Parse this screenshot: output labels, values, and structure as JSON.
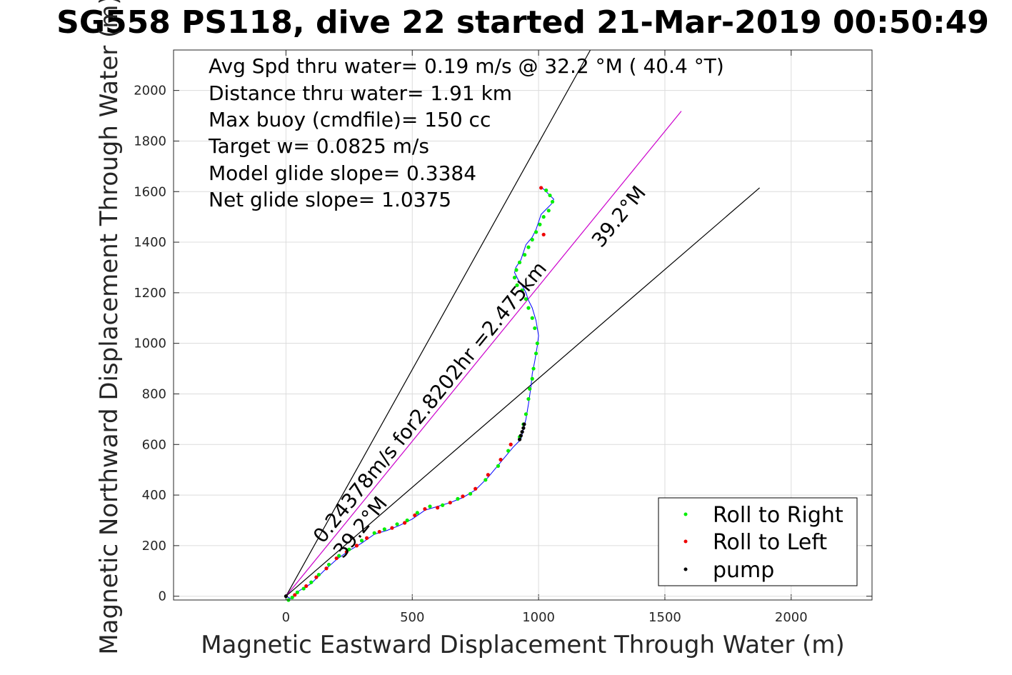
{
  "chart_data": {
    "type": "scatter",
    "title": "SG558 PS118, dive 22 started 21-Mar-2019 00:50:49",
    "xlabel": "Magnetic Eastward Displacement Through Water (m)",
    "ylabel": "Magnetic Northward Displacement Through Water (m)",
    "xlim": [
      -445,
      2320
    ],
    "ylim": [
      -15,
      2160
    ],
    "xticks": [
      0,
      500,
      1000,
      1500,
      2000
    ],
    "yticks": [
      0,
      200,
      400,
      600,
      800,
      1000,
      1200,
      1400,
      1600,
      1800,
      2000
    ],
    "grid": true,
    "legend_position": "bottom-right",
    "annotations": [
      "Avg Spd thru water=  0.19 m/s @  32.2 °M ( 40.4 °T)",
      "Distance thru water=  1.91 km",
      "Max buoy (cmdfile)= 150 cc",
      "Target w= 0.0825 m/s",
      "Model glide slope= 0.3384",
      "Net glide slope= 1.0375"
    ],
    "rotated_labels": {
      "speed": "0.24378m/s for2.8202hr =2.475km",
      "heading_upper": "39.2°M",
      "heading_lower": "39.2°M"
    },
    "reference_lines": [
      {
        "name": "upper",
        "x": [
          0,
          1205
        ],
        "y": [
          0,
          2160
        ],
        "color": "#000000"
      },
      {
        "name": "target",
        "x": [
          0,
          1565
        ],
        "y": [
          0,
          1918
        ],
        "color": "#cc00cc"
      },
      {
        "name": "lower",
        "x": [
          0,
          1875
        ],
        "y": [
          0,
          1615
        ],
        "color": "#000000"
      }
    ],
    "track": {
      "name": "track",
      "color": "#0000ff",
      "x": [
        0,
        20,
        50,
        100,
        150,
        200,
        250,
        300,
        350,
        400,
        450,
        500,
        550,
        600,
        650,
        700,
        750,
        800,
        850,
        900,
        930,
        940,
        950,
        960,
        970,
        975,
        985,
        995,
        1000,
        990,
        975,
        960,
        950,
        940,
        920,
        905,
        910,
        930,
        940,
        950,
        975,
        990,
        1000,
        1010,
        1030,
        1050,
        1060,
        1040,
        1020,
        1005
      ],
      "y": [
        0,
        -10,
        20,
        50,
        100,
        145,
        180,
        210,
        245,
        260,
        280,
        305,
        340,
        355,
        370,
        390,
        420,
        470,
        530,
        590,
        620,
        660,
        700,
        760,
        830,
        880,
        930,
        990,
        1030,
        1090,
        1140,
        1170,
        1200,
        1220,
        1250,
        1280,
        1300,
        1330,
        1360,
        1390,
        1420,
        1450,
        1480,
        1510,
        1530,
        1550,
        1570,
        1590,
        1610,
        1620
      ]
    },
    "series": [
      {
        "name": "Roll to Right",
        "color": "#00ee00",
        "marker": "dot",
        "x": [
          10,
          25,
          45,
          70,
          100,
          130,
          170,
          210,
          250,
          300,
          350,
          390,
          440,
          480,
          520,
          570,
          620,
          680,
          730,
          790,
          840,
          880,
          925,
          940,
          950,
          960,
          965,
          975,
          980,
          990,
          995,
          985,
          975,
          960,
          950,
          935,
          915,
          905,
          912,
          925,
          945,
          960,
          975,
          990,
          1005,
          1020,
          1040,
          1055,
          1045,
          1030
        ],
        "y": [
          -15,
          -5,
          15,
          30,
          55,
          85,
          125,
          160,
          185,
          220,
          250,
          265,
          285,
          300,
          330,
          355,
          360,
          385,
          405,
          460,
          515,
          575,
          630,
          680,
          720,
          780,
          820,
          860,
          900,
          960,
          1000,
          1060,
          1100,
          1140,
          1175,
          1210,
          1230,
          1260,
          1290,
          1320,
          1350,
          1380,
          1410,
          1440,
          1470,
          1500,
          1525,
          1560,
          1585,
          1605
        ]
      },
      {
        "name": "Roll to Left",
        "color": "#ee0000",
        "marker": "dot",
        "x": [
          35,
          80,
          120,
          160,
          200,
          240,
          280,
          320,
          370,
          420,
          470,
          510,
          550,
          600,
          650,
          700,
          750,
          800,
          850,
          890,
          1020,
          1010
        ],
        "y": [
          5,
          40,
          75,
          110,
          150,
          175,
          200,
          230,
          255,
          270,
          290,
          320,
          345,
          350,
          370,
          395,
          425,
          480,
          540,
          600,
          1430,
          1615
        ]
      },
      {
        "name": "pump",
        "color": "#000000",
        "marker": "dot",
        "x": [
          0,
          925,
          930,
          935,
          940,
          943
        ],
        "y": [
          0,
          620,
          635,
          650,
          665,
          680
        ]
      }
    ]
  }
}
